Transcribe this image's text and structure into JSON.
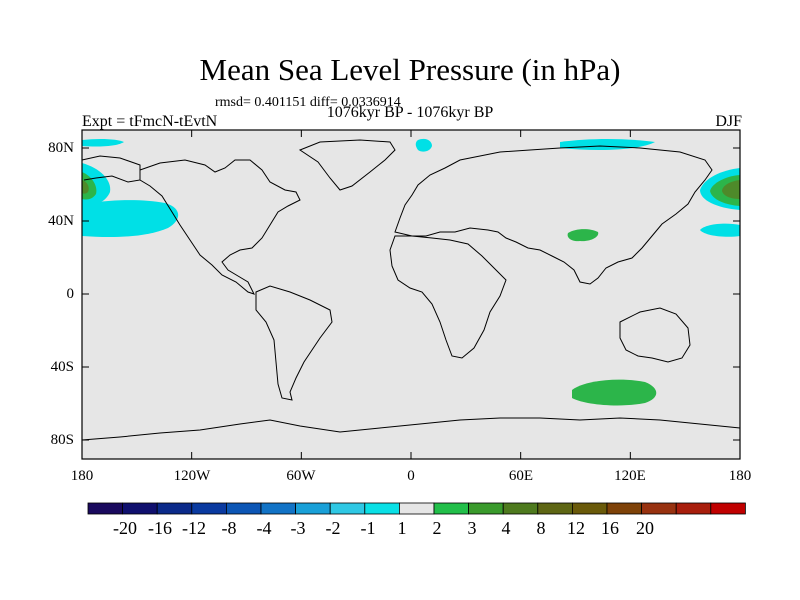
{
  "header": {
    "title": "Mean Sea Level Pressure (in hPa)",
    "subtitle": "rmsd= 0.401151 diff= 0.0336914",
    "center_title": "1076kyr BP - 1076kyr BP",
    "left_title": "Expt = tFmcN-tEvtN",
    "right_title": "DJF"
  },
  "map": {
    "lat_labels": [
      "80N",
      "40N",
      "0",
      "40S",
      "80S"
    ],
    "lon_labels": [
      "180",
      "120W",
      "60W",
      "0",
      "60E",
      "120E",
      "180"
    ],
    "land_color": "#e6e6e6",
    "coast_color": "#000000"
  },
  "colorbar": {
    "labels": [
      "-20",
      "-16",
      "-12",
      "-8",
      "-4",
      "-3",
      "-2",
      "-1",
      "1",
      "2",
      "3",
      "4",
      "8",
      "12",
      "16",
      "20"
    ],
    "colors": [
      "#1a0a5e",
      "#10106e",
      "#0b2a8a",
      "#0a3aa0",
      "#0c56b5",
      "#1273c6",
      "#19a0d8",
      "#2fc8e4",
      "#0ae0e6",
      "#e6e6e6",
      "#22bf4a",
      "#3a9a2c",
      "#4e7a1e",
      "#5e6614",
      "#6a5a0a",
      "#7e4208",
      "#983210",
      "#a81e0c",
      "#c00000"
    ]
  },
  "legend_colors": {
    "negative_anomaly": "#00e0e6",
    "positive_anomaly": "#2cb54a",
    "strong_positive": "#4e8a2a"
  }
}
